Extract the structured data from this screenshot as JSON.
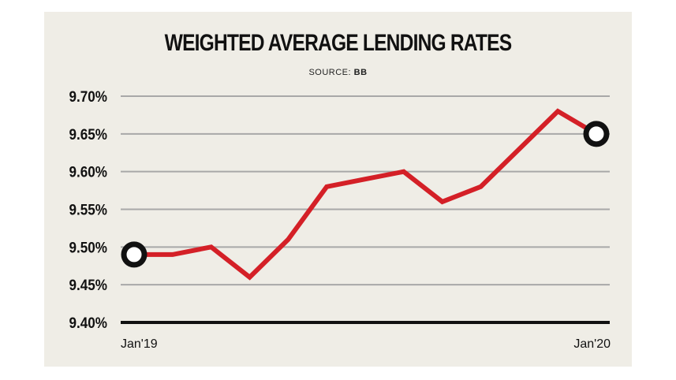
{
  "chart_data": {
    "type": "line",
    "title": "WEIGHTED AVERAGE LENDING RATES",
    "source_label": "SOURCE:",
    "source_value": "BB",
    "x_labels": [
      "Jan'19",
      "Jan'20"
    ],
    "yticks": [
      "9.70%",
      "9.65%",
      "9.60%",
      "9.55%",
      "9.50%",
      "9.45%",
      "9.40%"
    ],
    "ytick_values": [
      9.7,
      9.65,
      9.6,
      9.55,
      9.5,
      9.45,
      9.4
    ],
    "ylim": [
      9.4,
      9.7
    ],
    "series": [
      {
        "name": "Weighted average lending rate",
        "values": [
          9.49,
          9.49,
          9.5,
          9.46,
          9.51,
          9.58,
          9.59,
          9.6,
          9.56,
          9.58,
          9.63,
          9.68,
          9.65
        ]
      }
    ],
    "colors": {
      "line": "#d42027",
      "grid": "#a8a8a8",
      "axis": "#111111",
      "marker": "#111111"
    }
  }
}
